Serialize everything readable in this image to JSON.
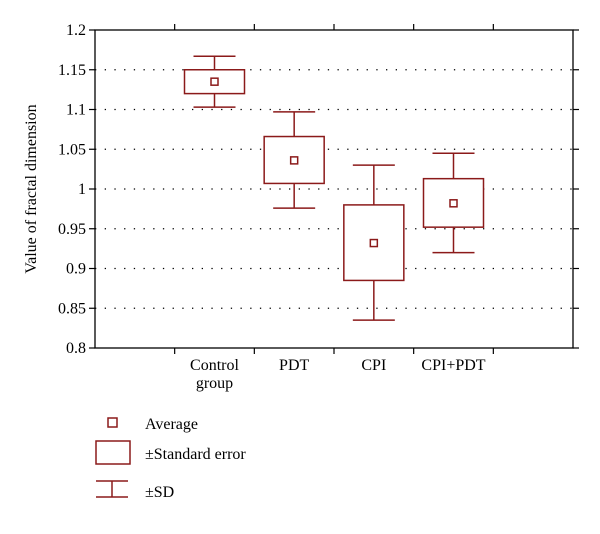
{
  "chart_data": {
    "type": "box",
    "ylabel": "Value of fractal dimension",
    "xlabel": "",
    "ylim": [
      0.8,
      1.2
    ],
    "yticks": [
      "0.8",
      "0.85",
      "0.9",
      "0.95",
      "1",
      "1.05",
      "1.1",
      "1.15",
      "1.2"
    ],
    "grid": true,
    "color": "#8b1a1a",
    "categories": [
      {
        "label_lines": [
          "Control",
          "group"
        ],
        "mean": 1.135,
        "se_low": 1.12,
        "se_high": 1.15,
        "sd_low": 1.103,
        "sd_high": 1.167
      },
      {
        "label_lines": [
          "PDT"
        ],
        "mean": 1.036,
        "se_low": 1.007,
        "se_high": 1.066,
        "sd_low": 0.976,
        "sd_high": 1.097
      },
      {
        "label_lines": [
          "CPI"
        ],
        "mean": 0.932,
        "se_low": 0.885,
        "se_high": 0.98,
        "sd_low": 0.835,
        "sd_high": 1.03
      },
      {
        "label_lines": [
          "CPI+PDT"
        ],
        "mean": 0.982,
        "se_low": 0.952,
        "se_high": 1.013,
        "sd_low": 0.92,
        "sd_high": 1.045
      }
    ],
    "legend": {
      "average": "Average",
      "standard_error": "±Standard error",
      "sd": "±SD"
    }
  }
}
